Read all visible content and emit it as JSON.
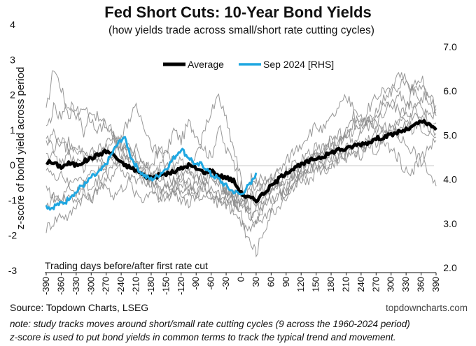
{
  "chart_data": {
    "type": "line",
    "title": "Fed Short Cuts: 10-Year Bond Yields",
    "subtitle": "(how yields trade across small/short rate cutting cycles)",
    "ylabel": "z-score of bond yield across period",
    "xlabel": "Trading days before/after first rate cut",
    "xlim": [
      -390,
      390
    ],
    "ylim": [
      -3,
      4
    ],
    "y2lim": [
      2.0,
      7.0
    ],
    "x_ticks": [
      -390,
      -360,
      -330,
      -300,
      -270,
      -240,
      -210,
      -180,
      -150,
      -120,
      -90,
      -60,
      -30,
      0,
      30,
      60,
      90,
      120,
      150,
      180,
      210,
      240,
      270,
      300,
      330,
      360,
      390
    ],
    "y_ticks": [
      -3,
      -2,
      -1,
      0,
      1,
      2,
      3,
      4
    ],
    "y2_ticks": [
      "2.0",
      "3.0",
      "4.0",
      "5.0",
      "6.0",
      "7.0"
    ],
    "legend_position": "top-center",
    "grid": false,
    "series": [
      {
        "name": "Average",
        "axis": "left",
        "color": "#000000",
        "x": [
          -390,
          -375,
          -360,
          -345,
          -330,
          -315,
          -300,
          -285,
          -270,
          -255,
          -240,
          -225,
          -210,
          -195,
          -180,
          -165,
          -150,
          -135,
          -120,
          -105,
          -90,
          -75,
          -60,
          -45,
          -30,
          -15,
          0,
          10,
          20,
          30,
          45,
          60,
          75,
          90,
          105,
          120,
          135,
          150,
          165,
          180,
          195,
          210,
          225,
          240,
          255,
          270,
          285,
          300,
          315,
          330,
          345,
          360,
          375,
          390
        ],
        "values": [
          0.1,
          0.05,
          -0.05,
          0.05,
          0.0,
          0.1,
          0.2,
          0.3,
          0.4,
          0.3,
          0.05,
          -0.05,
          -0.15,
          -0.3,
          -0.35,
          -0.3,
          -0.25,
          -0.2,
          -0.1,
          0.0,
          -0.1,
          -0.2,
          -0.15,
          -0.3,
          -0.35,
          -0.45,
          -0.8,
          -0.9,
          -0.95,
          -1.0,
          -0.8,
          -0.6,
          -0.4,
          -0.2,
          -0.1,
          0.0,
          0.1,
          0.2,
          0.25,
          0.35,
          0.45,
          0.45,
          0.55,
          0.6,
          0.65,
          0.75,
          0.8,
          0.85,
          0.95,
          1.0,
          1.1,
          1.25,
          1.15,
          1.0
        ]
      },
      {
        "name": "Sep 2024 [RHS]",
        "axis": "right",
        "color": "#1fa7e1",
        "x": [
          -390,
          -380,
          -370,
          -360,
          -350,
          -340,
          -330,
          -320,
          -310,
          -300,
          -290,
          -280,
          -270,
          -260,
          -250,
          -240,
          -235,
          -230,
          -220,
          -210,
          -200,
          -190,
          -180,
          -170,
          -160,
          -150,
          -140,
          -130,
          -120,
          -110,
          -100,
          -90,
          -80,
          -70,
          -60,
          -50,
          -40,
          -30,
          -20,
          -10,
          0,
          10,
          20,
          30
        ],
        "values": [
          3.4,
          3.35,
          3.42,
          3.45,
          3.5,
          3.65,
          3.7,
          3.85,
          3.9,
          4.05,
          4.1,
          4.2,
          4.35,
          4.55,
          4.75,
          4.9,
          4.95,
          4.85,
          4.5,
          4.3,
          4.15,
          4.05,
          4.0,
          4.05,
          4.15,
          4.25,
          4.4,
          4.55,
          4.7,
          4.55,
          4.45,
          4.3,
          4.35,
          4.25,
          4.1,
          4.05,
          3.95,
          3.85,
          3.75,
          3.7,
          3.65,
          3.8,
          3.9,
          4.15
        ]
      }
    ],
    "cycles": [
      {
        "values": [
          1.5,
          2.8,
          2.2,
          1.4,
          1.7,
          0.9,
          1.6,
          1.3,
          1.1,
          0.8,
          0.3,
          0.5,
          0.2,
          -0.2,
          0.0,
          0.4,
          0.3,
          1.0,
          0.7,
          1.2,
          0.9,
          0.5,
          0.2,
          1.1,
          0.4,
          0.2,
          -0.8,
          -1.2,
          -1.5,
          -1.7,
          -1.3,
          -0.8,
          -0.6,
          -0.9,
          -0.3,
          -0.1,
          0.2,
          0.5,
          0.3,
          0.8,
          0.6,
          1.1,
          1.4,
          1.2,
          1.6,
          1.9,
          2.2,
          2.0,
          2.3,
          2.5,
          2.1,
          2.3,
          1.8,
          1.5
        ]
      },
      {
        "values": [
          -1.8,
          -1.6,
          -1.4,
          -1.5,
          -1.1,
          -0.9,
          -1.0,
          -0.6,
          -0.5,
          -0.2,
          0.1,
          0.3,
          0.2,
          0.0,
          -0.3,
          -0.6,
          -0.9,
          -0.7,
          -1.0,
          -0.8,
          -0.9,
          -0.7,
          -1.0,
          -0.8,
          -1.1,
          -1.3,
          -1.6,
          -1.8,
          -1.9,
          -1.6,
          -1.5,
          -1.2,
          -0.9,
          -0.8,
          -0.5,
          -0.3,
          -0.2,
          0.0,
          0.1,
          0.2,
          0.3,
          0.2,
          0.5,
          0.6,
          0.7,
          1.0,
          1.1,
          0.9,
          1.2,
          1.4,
          1.6,
          1.9,
          2.0,
          1.7
        ]
      },
      {
        "values": [
          0.8,
          0.5,
          0.7,
          0.4,
          0.6,
          0.3,
          0.4,
          0.2,
          0.5,
          0.7,
          0.4,
          0.2,
          -0.1,
          -0.2,
          -0.4,
          -0.1,
          -0.5,
          -0.6,
          -0.3,
          -0.5,
          -0.8,
          -0.5,
          -0.6,
          -0.9,
          -0.7,
          -1.0,
          -0.6,
          -0.8,
          -0.4,
          -0.5,
          -0.7,
          -0.3,
          -0.6,
          -0.2,
          -0.3,
          -0.1,
          0.1,
          0.2,
          0.0,
          0.3,
          0.2,
          0.5,
          0.4,
          0.3,
          0.6,
          0.4,
          0.7,
          1.0,
          0.8,
          0.6,
          0.4,
          0.1,
          -0.2,
          -0.6
        ]
      },
      {
        "values": [
          -1.2,
          -0.9,
          -1.0,
          -0.6,
          -0.8,
          -0.5,
          -0.3,
          -0.1,
          0.0,
          0.3,
          0.8,
          1.3,
          1.6,
          1.2,
          0.6,
          0.3,
          0.5,
          0.0,
          -0.4,
          -0.2,
          -0.5,
          -0.3,
          -0.2,
          -0.4,
          -0.7,
          -1.0,
          -1.3,
          -1.0,
          -0.9,
          -0.8,
          -0.6,
          -0.3,
          -0.2,
          0.1,
          0.4,
          0.6,
          0.9,
          1.1,
          1.0,
          1.3,
          1.6,
          1.9,
          1.7,
          1.4,
          1.2,
          0.9,
          0.6,
          0.5,
          0.2,
          -0.2,
          -0.1,
          0.2,
          0.5,
          0.7
        ]
      },
      {
        "values": [
          1.0,
          1.6,
          1.3,
          1.8,
          1.4,
          1.7,
          1.3,
          1.0,
          1.2,
          0.9,
          0.6,
          0.3,
          0.5,
          0.1,
          -0.3,
          -0.1,
          0.1,
          -0.2,
          0.2,
          -0.4,
          -0.1,
          -0.5,
          -0.2,
          -0.6,
          -0.9,
          -1.1,
          -1.4,
          -2.0,
          -2.3,
          -2.5,
          -1.9,
          -1.4,
          -1.2,
          -0.8,
          -0.6,
          -0.3,
          -0.1,
          0.0,
          0.3,
          0.6,
          0.5,
          0.9,
          1.2,
          1.0,
          1.3,
          1.5,
          1.9,
          2.2,
          2.6,
          2.4,
          2.1,
          1.8,
          1.2,
          0.9
        ]
      },
      {
        "values": [
          0.0,
          -0.4,
          -0.2,
          -0.6,
          -0.3,
          -0.5,
          -0.7,
          -0.4,
          -0.6,
          -0.9,
          -0.7,
          -0.5,
          -0.8,
          -1.0,
          -0.7,
          -0.9,
          -0.6,
          -0.8,
          -0.5,
          -0.7,
          -0.4,
          -0.6,
          -0.3,
          -0.5,
          -0.7,
          -0.8,
          -1.0,
          -1.3,
          -1.1,
          -1.2,
          -0.9,
          -0.7,
          -0.5,
          -0.6,
          -0.3,
          -0.4,
          -0.1,
          0.0,
          -0.2,
          0.1,
          0.0,
          0.3,
          0.5,
          0.4,
          0.7,
          0.6,
          0.8,
          1.1,
          0.9,
          1.2,
          1.0,
          1.3,
          1.5,
          1.4
        ]
      },
      {
        "values": [
          0.4,
          0.2,
          0.0,
          0.3,
          0.1,
          -0.1,
          0.2,
          0.4,
          0.6,
          0.8,
          0.6,
          0.3,
          0.0,
          -0.3,
          -0.5,
          -0.7,
          -0.6,
          -0.4,
          -0.2,
          0.0,
          0.2,
          0.9,
          1.5,
          2.0,
          1.3,
          0.5,
          -0.4,
          -1.0,
          -1.4,
          -1.2,
          -1.0,
          -0.7,
          -0.4,
          -0.5,
          -0.2,
          0.0,
          0.2,
          0.3,
          0.5,
          0.7,
          0.9,
          0.8,
          1.0,
          1.3,
          1.1,
          1.4,
          1.6,
          1.8,
          1.5,
          1.2,
          1.4,
          1.1,
          0.9,
          1.2
        ]
      },
      {
        "values": [
          -0.6,
          -0.9,
          -1.1,
          -0.8,
          -1.0,
          -0.7,
          -0.9,
          -0.5,
          -0.3,
          0.0,
          0.3,
          0.1,
          -0.2,
          -0.4,
          -0.6,
          -0.4,
          -0.2,
          -0.5,
          -0.7,
          -0.5,
          -0.8,
          -0.6,
          -0.9,
          -1.1,
          -0.8,
          -1.0,
          -1.1,
          -0.9,
          -0.7,
          -0.5,
          -0.4,
          -0.5,
          -0.2,
          -0.3,
          0.0,
          0.1,
          0.3,
          0.2,
          0.5,
          0.4,
          0.6,
          0.9,
          0.7,
          1.0,
          1.3,
          1.1,
          1.5,
          1.7,
          2.0,
          1.8,
          1.6,
          1.3,
          1.0,
          0.8
        ]
      },
      {
        "values": [
          0.6,
          0.9,
          0.5,
          0.7,
          0.4,
          0.5,
          0.2,
          0.3,
          0.0,
          0.2,
          -0.1,
          -0.3,
          -0.5,
          -0.3,
          -0.6,
          -0.8,
          -1.0,
          -0.7,
          -0.9,
          -1.1,
          -0.8,
          -1.0,
          -0.7,
          -0.9,
          -1.1,
          -1.2,
          -1.0,
          -1.3,
          -1.5,
          -1.4,
          -1.2,
          -1.0,
          -0.8,
          -0.9,
          -0.6,
          -0.4,
          -0.5,
          -0.2,
          0.0,
          -0.1,
          0.2,
          0.4,
          0.3,
          0.6,
          0.5,
          0.8,
          1.1,
          1.0,
          1.3,
          1.6,
          2.2,
          2.5,
          2.0,
          1.6
        ]
      }
    ]
  },
  "source": "Source: Topdown Charts, LSEG",
  "website": "topdowncharts.com",
  "note_line1": "note: study tracks moves around short/small rate cutting cycles (9 across the 1960-2024 period)",
  "note_line2": "z-score is used to put bond yields in common terms to track the typical trend and movement."
}
